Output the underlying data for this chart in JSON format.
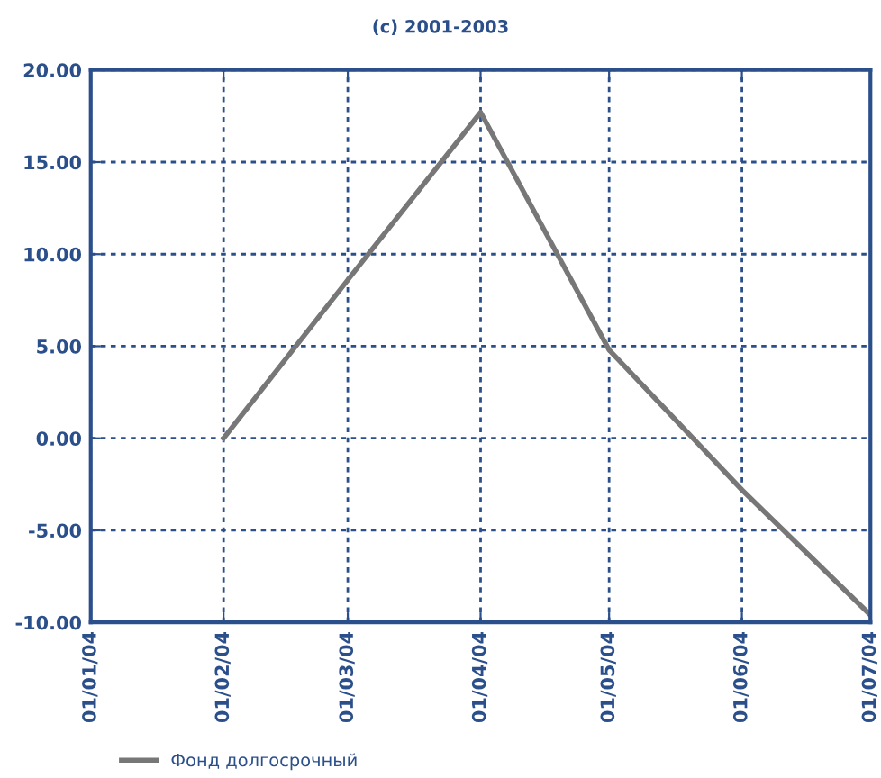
{
  "chart_data": {
    "type": "line",
    "title": "(c) 2001-2003",
    "x": [
      "2004-02-01",
      "2004-03-01",
      "2004-04-01",
      "2004-05-01",
      "2004-06-01",
      "2004-07-01"
    ],
    "series": [
      {
        "name": "Фонд долгосрочный",
        "color": "#777777",
        "values": [
          0,
          8.6,
          17.7,
          4.8,
          -2.8,
          -9.6
        ]
      }
    ],
    "xlim": [
      "2004-01-01",
      "2004-07-01"
    ],
    "xticks": [
      {
        "value": "2004-01-01",
        "label": "01/01/04"
      },
      {
        "value": "2004-02-01",
        "label": "01/02/04"
      },
      {
        "value": "2004-03-01",
        "label": "01/03/04"
      },
      {
        "value": "2004-04-01",
        "label": "01/04/04"
      },
      {
        "value": "2004-05-01",
        "label": "01/05/04"
      },
      {
        "value": "2004-06-01",
        "label": "01/06/04"
      },
      {
        "value": "2004-07-01",
        "label": "01/07/04"
      }
    ],
    "ylim": [
      -10,
      20
    ],
    "yticks": [
      {
        "value": -10,
        "label": "-10.00"
      },
      {
        "value": -5,
        "label": "-5.00"
      },
      {
        "value": 0,
        "label": "0.00"
      },
      {
        "value": 5,
        "label": "5.00"
      },
      {
        "value": 10,
        "label": "10.00"
      },
      {
        "value": 15,
        "label": "15.00"
      },
      {
        "value": 20,
        "label": "20.00"
      }
    ],
    "grid": true,
    "legend": "bottom left",
    "marker": "none",
    "line_style": "solid"
  }
}
